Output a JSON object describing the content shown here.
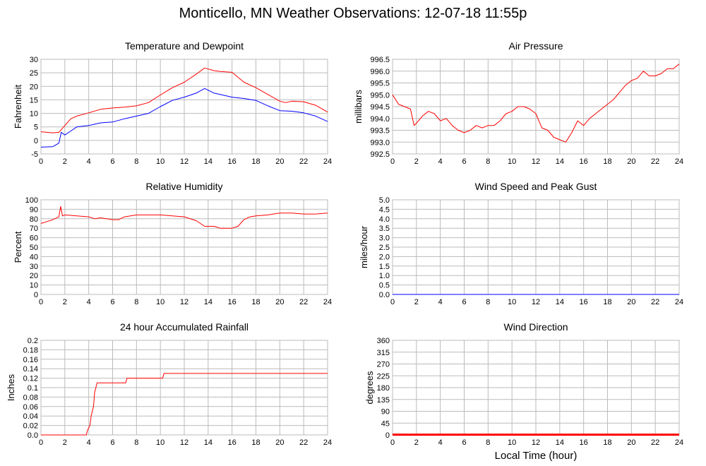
{
  "page": {
    "title": "Monticello, MN Weather Observations: 12-07-18 11:55p",
    "xlabel": "Local Time (hour)"
  },
  "colors": {
    "red": "#ff0000",
    "blue": "#0000ff",
    "grid": "#bbbbbb",
    "frame": "#999999"
  },
  "chart_data": [
    {
      "id": "temp",
      "type": "line",
      "title": "Temperature and Dewpoint",
      "ylabel": "Fahrenheit",
      "xlim": [
        0,
        24
      ],
      "ylim": [
        -5,
        30
      ],
      "xticks": [
        0,
        2,
        4,
        6,
        8,
        10,
        12,
        14,
        16,
        18,
        20,
        22,
        24
      ],
      "xtick_labels": [
        "0",
        "2",
        "4",
        "6",
        "8",
        "10",
        "12",
        "14",
        "16",
        "18",
        "20",
        "22",
        "24"
      ],
      "yticks": [
        -5,
        0,
        5,
        10,
        15,
        20,
        25,
        30
      ],
      "ytick_labels": [
        "-5",
        "0",
        "5",
        "10",
        "15",
        "20",
        "25",
        "30"
      ],
      "grid": true,
      "series": [
        {
          "color": "#ff0000",
          "x": [
            0,
            1,
            1.5,
            2,
            2.5,
            3,
            4,
            5,
            6,
            7,
            8,
            9,
            10,
            11,
            12,
            13,
            13.7,
            14.5,
            15,
            16,
            17,
            18,
            19,
            20,
            20.5,
            21,
            22,
            23,
            24
          ],
          "y": [
            3.2,
            2.8,
            3.0,
            5.5,
            8.0,
            9.0,
            10.2,
            11.5,
            12.0,
            12.3,
            12.8,
            14.0,
            16.8,
            19.5,
            21.5,
            24.5,
            26.8,
            25.8,
            25.5,
            25.2,
            21.5,
            19.5,
            17.0,
            14.5,
            14.0,
            14.5,
            14.3,
            13.0,
            10.5
          ]
        },
        {
          "color": "#0000ff",
          "x": [
            0,
            1,
            1.5,
            1.7,
            2,
            2.5,
            3,
            4,
            5,
            6,
            7,
            8,
            9,
            10,
            11,
            12,
            13,
            13.7,
            14.5,
            15,
            16,
            17,
            18,
            19,
            20,
            21,
            22,
            23,
            24
          ],
          "y": [
            -2.5,
            -2.3,
            -1.0,
            3.0,
            2.0,
            3.5,
            5.0,
            5.5,
            6.5,
            6.8,
            8.0,
            9.0,
            10.0,
            12.5,
            14.8,
            16.0,
            17.5,
            19.2,
            17.5,
            17.0,
            16.0,
            15.5,
            14.8,
            12.8,
            11.0,
            10.8,
            10.2,
            9.0,
            7.0
          ]
        }
      ]
    },
    {
      "id": "pressure",
      "type": "line",
      "title": "Air Pressure",
      "ylabel": "millibars",
      "xlim": [
        0,
        24
      ],
      "ylim": [
        992.5,
        996.5
      ],
      "xticks": [
        0,
        2,
        4,
        6,
        8,
        10,
        12,
        14,
        16,
        18,
        20,
        22,
        24
      ],
      "xtick_labels": [
        "0",
        "2",
        "4",
        "6",
        "8",
        "10",
        "12",
        "14",
        "16",
        "18",
        "20",
        "22",
        "24"
      ],
      "yticks": [
        992.5,
        993.0,
        993.5,
        994.0,
        994.5,
        995.0,
        995.5,
        996.0,
        996.5
      ],
      "ytick_labels": [
        "992.5",
        "993.0",
        "993.5",
        "994.0",
        "994.5",
        "995.0",
        "995.5",
        "996.0",
        "996.5"
      ],
      "grid": true,
      "series": [
        {
          "color": "#ff0000",
          "x": [
            0,
            0.5,
            1,
            1.5,
            1.8,
            2,
            2.5,
            3,
            3.5,
            4,
            4.5,
            5,
            5.5,
            6,
            6.5,
            7,
            7.5,
            8,
            8.5,
            9,
            9.5,
            10,
            10.5,
            11,
            11.5,
            12,
            12.5,
            13,
            13.5,
            14,
            14.5,
            15,
            15.5,
            16,
            16.5,
            17,
            17.5,
            18,
            18.5,
            19,
            19.5,
            20,
            20.5,
            21,
            21.5,
            22,
            22.5,
            23,
            23.5,
            24
          ],
          "y": [
            995.0,
            994.6,
            994.5,
            994.4,
            993.7,
            993.8,
            994.1,
            994.3,
            994.2,
            993.9,
            994.0,
            993.7,
            993.5,
            993.4,
            993.5,
            993.7,
            993.6,
            993.7,
            993.7,
            993.9,
            994.2,
            994.3,
            994.5,
            994.5,
            994.4,
            994.2,
            993.6,
            993.5,
            993.2,
            993.1,
            993.0,
            993.4,
            993.9,
            993.7,
            994.0,
            994.2,
            994.4,
            994.6,
            994.8,
            995.1,
            995.4,
            995.6,
            995.7,
            996.0,
            995.8,
            995.8,
            995.9,
            996.1,
            996.1,
            996.3
          ]
        }
      ]
    },
    {
      "id": "humidity",
      "type": "line",
      "title": "Relative Humidity",
      "ylabel": "Percent",
      "xlim": [
        0,
        24
      ],
      "ylim": [
        0,
        100
      ],
      "xticks": [
        0,
        2,
        4,
        6,
        8,
        10,
        12,
        14,
        16,
        18,
        20,
        22,
        24
      ],
      "xtick_labels": [
        "0",
        "2",
        "4",
        "6",
        "8",
        "10",
        "12",
        "14",
        "16",
        "18",
        "20",
        "22",
        "24"
      ],
      "yticks": [
        0,
        10,
        20,
        30,
        40,
        50,
        60,
        70,
        80,
        90,
        100
      ],
      "ytick_labels": [
        "0",
        "10",
        "20",
        "30",
        "40",
        "50",
        "60",
        "70",
        "80",
        "90",
        "100"
      ],
      "grid": true,
      "series": [
        {
          "color": "#ff0000",
          "x": [
            0,
            0.5,
            1,
            1.5,
            1.65,
            1.8,
            2,
            3,
            4,
            4.5,
            5,
            6,
            6.5,
            7,
            8,
            9,
            10,
            11,
            12,
            13,
            13.7,
            14.5,
            15,
            16,
            16.5,
            17,
            17.5,
            18,
            19,
            20,
            21,
            22,
            23,
            24
          ],
          "y": [
            75,
            77,
            79,
            82,
            93,
            83,
            84,
            83,
            82,
            80,
            81,
            79,
            79,
            82,
            84,
            84,
            84,
            83,
            82,
            78,
            72,
            72,
            70,
            70,
            72,
            79,
            82,
            83,
            84,
            86,
            86,
            85,
            85,
            86
          ]
        }
      ]
    },
    {
      "id": "wind",
      "type": "line",
      "title": "Wind Speed and Peak Gust",
      "ylabel": "miles/hour",
      "xlim": [
        0,
        24
      ],
      "ylim": [
        0,
        5
      ],
      "xticks": [
        0,
        2,
        4,
        6,
        8,
        10,
        12,
        14,
        16,
        18,
        20,
        22,
        24
      ],
      "xtick_labels": [
        "0",
        "2",
        "4",
        "6",
        "8",
        "10",
        "12",
        "14",
        "16",
        "18",
        "20",
        "22",
        "24"
      ],
      "yticks": [
        0,
        0.5,
        1,
        1.5,
        2,
        2.5,
        3,
        3.5,
        4,
        4.5,
        5
      ],
      "ytick_labels": [
        "0.0",
        "0.5",
        "1.0",
        "1.5",
        "2.0",
        "2.5",
        "3.0",
        "3.5",
        "4.0",
        "4.5",
        "5.0"
      ],
      "grid": true,
      "series": [
        {
          "color": "#0000ff",
          "x": [
            0,
            24
          ],
          "y": [
            0,
            0
          ]
        }
      ]
    },
    {
      "id": "rain",
      "type": "line",
      "title": "24 hour Accumulated Rainfall",
      "ylabel": "Inches",
      "xlim": [
        0,
        24
      ],
      "ylim": [
        0,
        0.2
      ],
      "xticks": [
        0,
        2,
        4,
        6,
        8,
        10,
        12,
        14,
        16,
        18,
        20,
        22,
        24
      ],
      "xtick_labels": [
        "0",
        "2",
        "4",
        "6",
        "8",
        "10",
        "12",
        "14",
        "16",
        "18",
        "20",
        "22",
        "24"
      ],
      "yticks": [
        0,
        0.02,
        0.04,
        0.06,
        0.08,
        0.1,
        0.12,
        0.14,
        0.16,
        0.18,
        0.2
      ],
      "ytick_labels": [
        "0.0",
        "0.02",
        "0.04",
        "0.06",
        "0.08",
        "0.1",
        "0.12",
        "0.14",
        "0.16",
        "0.18",
        "0.2"
      ],
      "grid": true,
      "series": [
        {
          "color": "#ff0000",
          "x": [
            0,
            3.8,
            3.9,
            4.1,
            4.2,
            4.4,
            4.5,
            4.7,
            7.1,
            7.2,
            10.2,
            10.3,
            24
          ],
          "y": [
            0,
            0,
            0.01,
            0.02,
            0.04,
            0.06,
            0.09,
            0.11,
            0.11,
            0.12,
            0.12,
            0.13,
            0.13
          ]
        }
      ]
    },
    {
      "id": "winddir",
      "type": "line",
      "title": "Wind Direction",
      "ylabel": "degrees",
      "xlim": [
        0,
        24
      ],
      "ylim": [
        0,
        360
      ],
      "xticks": [
        0,
        2,
        4,
        6,
        8,
        10,
        12,
        14,
        16,
        18,
        20,
        22,
        24
      ],
      "xtick_labels": [
        "0",
        "2",
        "4",
        "6",
        "8",
        "10",
        "12",
        "14",
        "16",
        "18",
        "20",
        "22",
        "24"
      ],
      "yticks": [
        0,
        45,
        90,
        135,
        180,
        225,
        270,
        315,
        360
      ],
      "ytick_labels": [
        "0",
        "45",
        "90",
        "135",
        "180",
        "225",
        "270",
        "315",
        "360"
      ],
      "grid": true,
      "series": [
        {
          "color": "#ff0000",
          "x": [
            0,
            24
          ],
          "y": [
            1,
            1
          ],
          "thick": true
        }
      ]
    }
  ]
}
